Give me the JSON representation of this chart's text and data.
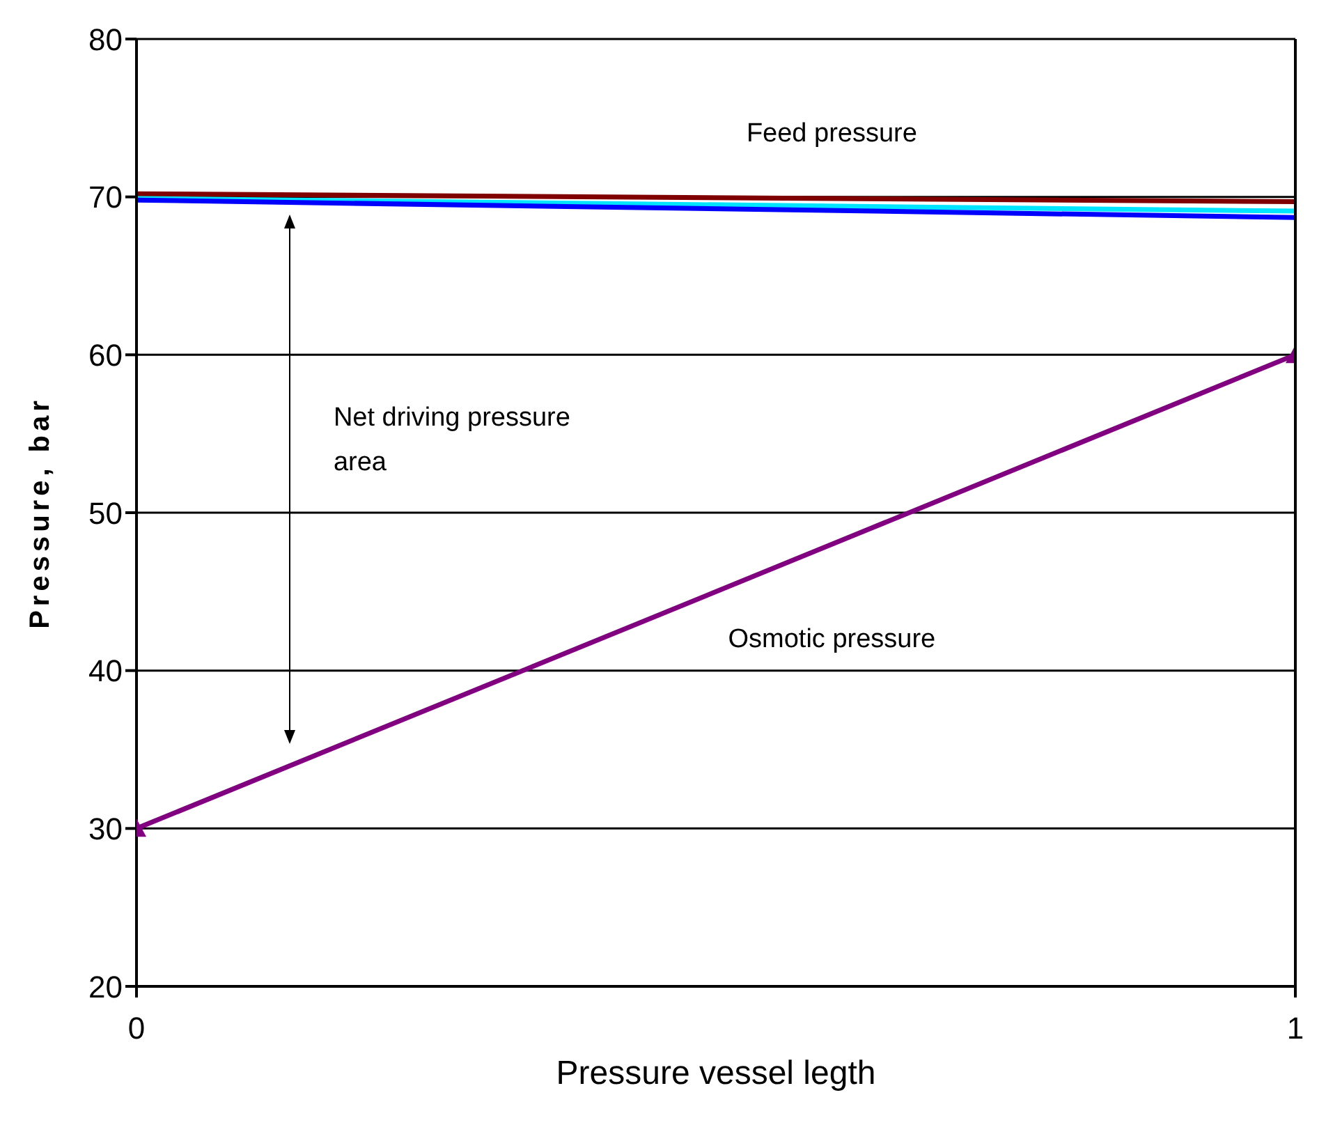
{
  "chart_data": {
    "type": "line",
    "xlabel": "Pressure vessel legth",
    "ylabel": "Pressure, bar",
    "x": [
      0,
      1
    ],
    "series": [
      {
        "color": "#800000",
        "values": [
          70.2,
          69.7
        ]
      },
      {
        "color": "#00e5ff",
        "values": [
          69.9,
          69.1
        ]
      },
      {
        "color": "#0000ff",
        "values": [
          69.8,
          68.7
        ]
      },
      {
        "color": "#800080",
        "values": [
          30,
          60
        ],
        "marker": "triangle"
      }
    ],
    "xlim": [
      0,
      1
    ],
    "xticks": [
      0,
      1
    ],
    "ylim": [
      20,
      80
    ],
    "yticks": [
      20,
      30,
      40,
      50,
      60,
      70,
      80
    ],
    "grid": "y",
    "marker": "none",
    "line_style": "solid",
    "annotations": [
      "Feed pressure",
      "Net driving pressure area",
      "Osmotic pressure"
    ]
  }
}
